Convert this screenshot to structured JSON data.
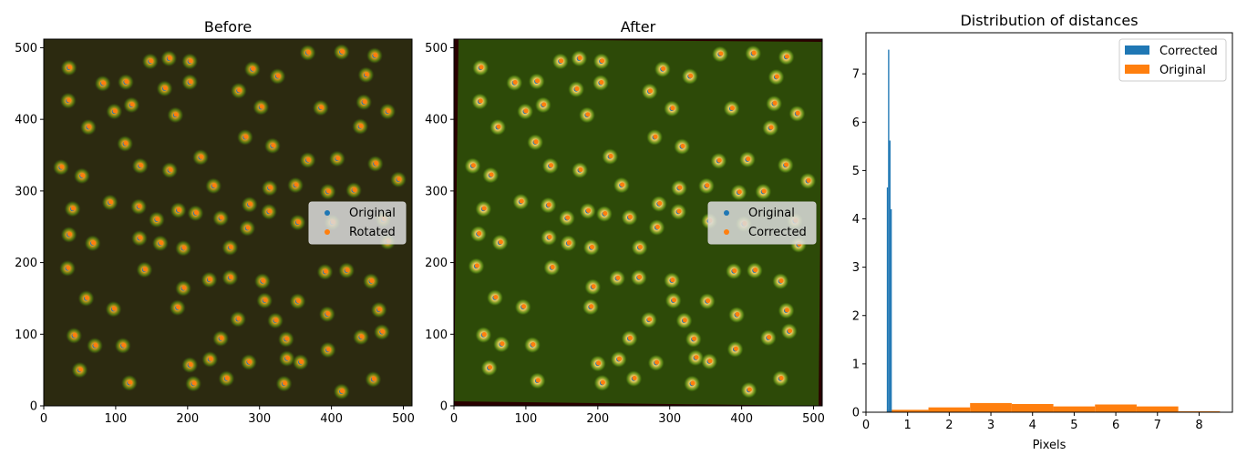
{
  "colors": {
    "blue": "#1f77b4",
    "orange": "#ff7f0e",
    "before_bg": "#2c2a10",
    "after_bg": "#2d4a08",
    "after_border": "#2a0000"
  },
  "chart_data": [
    {
      "type": "scatter",
      "title": "Before",
      "xlabel": "",
      "ylabel": "",
      "xlim": [
        0,
        512
      ],
      "ylim": [
        0,
        512
      ],
      "xticks": [
        "0",
        "100",
        "200",
        "300",
        "400",
        "500"
      ],
      "yticks": [
        "0",
        "100",
        "200",
        "300",
        "400",
        "500"
      ],
      "background": "fluorescence image of spots",
      "legend_position": "center-right",
      "series": [
        {
          "name": "Original",
          "color": "#1f77b4"
        },
        {
          "name": "Rotated",
          "color": "#ff7f0e"
        }
      ],
      "points": [
        [
          35,
          472
        ],
        [
          148,
          481
        ],
        [
          174,
          485
        ],
        [
          203,
          481
        ],
        [
          290,
          470
        ],
        [
          325,
          460
        ],
        [
          367,
          493
        ],
        [
          414,
          494
        ],
        [
          460,
          489
        ],
        [
          82,
          450
        ],
        [
          114,
          452
        ],
        [
          168,
          443
        ],
        [
          203,
          452
        ],
        [
          271,
          440
        ],
        [
          34,
          426
        ],
        [
          98,
          411
        ],
        [
          122,
          420
        ],
        [
          183,
          406
        ],
        [
          302,
          417
        ],
        [
          385,
          416
        ],
        [
          448,
          462
        ],
        [
          445,
          424
        ],
        [
          478,
          411
        ],
        [
          62,
          389
        ],
        [
          113,
          366
        ],
        [
          440,
          390
        ],
        [
          280,
          375
        ],
        [
          318,
          363
        ],
        [
          218,
          347
        ],
        [
          367,
          343
        ],
        [
          408,
          345
        ],
        [
          461,
          338
        ],
        [
          24,
          333
        ],
        [
          134,
          335
        ],
        [
          175,
          329
        ],
        [
          53,
          321
        ],
        [
          236,
          307
        ],
        [
          314,
          304
        ],
        [
          350,
          308
        ],
        [
          395,
          299
        ],
        [
          431,
          301
        ],
        [
          493,
          316
        ],
        [
          40,
          275
        ],
        [
          92,
          284
        ],
        [
          132,
          278
        ],
        [
          187,
          273
        ],
        [
          211,
          269
        ],
        [
          286,
          281
        ],
        [
          313,
          271
        ],
        [
          35,
          239
        ],
        [
          68,
          227
        ],
        [
          133,
          234
        ],
        [
          157,
          260
        ],
        [
          162,
          227
        ],
        [
          194,
          220
        ],
        [
          246,
          262
        ],
        [
          259,
          221
        ],
        [
          283,
          248
        ],
        [
          353,
          256
        ],
        [
          401,
          256
        ],
        [
          472,
          260
        ],
        [
          478,
          229
        ],
        [
          33,
          192
        ],
        [
          140,
          190
        ],
        [
          194,
          164
        ],
        [
          230,
          176
        ],
        [
          259,
          179
        ],
        [
          304,
          174
        ],
        [
          391,
          187
        ],
        [
          421,
          189
        ],
        [
          455,
          174
        ],
        [
          59,
          150
        ],
        [
          97,
          135
        ],
        [
          186,
          137
        ],
        [
          307,
          147
        ],
        [
          353,
          146
        ],
        [
          466,
          134
        ],
        [
          42,
          98
        ],
        [
          71,
          84
        ],
        [
          110,
          84
        ],
        [
          246,
          94
        ],
        [
          270,
          121
        ],
        [
          322,
          119
        ],
        [
          394,
          128
        ],
        [
          441,
          96
        ],
        [
          470,
          103
        ],
        [
          50,
          50
        ],
        [
          119,
          32
        ],
        [
          203,
          57
        ],
        [
          208,
          31
        ],
        [
          231,
          65
        ],
        [
          254,
          38
        ],
        [
          285,
          61
        ],
        [
          337,
          93
        ],
        [
          338,
          66
        ],
        [
          357,
          61
        ],
        [
          395,
          78
        ],
        [
          334,
          31
        ],
        [
          414,
          20
        ],
        [
          458,
          37
        ]
      ]
    },
    {
      "type": "scatter",
      "title": "After",
      "xlabel": "",
      "ylabel": "",
      "xlim": [
        0,
        512
      ],
      "ylim": [
        0,
        512
      ],
      "xticks": [
        "0",
        "100",
        "200",
        "300",
        "400",
        "500"
      ],
      "yticks": [
        "0",
        "100",
        "200",
        "300",
        "400",
        "500"
      ],
      "background": "fluorescence image of spots, slightly rotated",
      "legend_position": "center-right",
      "series": [
        {
          "name": "Original",
          "color": "#1f77b4"
        },
        {
          "name": "Corrected",
          "color": "#ff7f0e"
        }
      ],
      "points": [
        [
          37,
          472
        ],
        [
          148,
          481
        ],
        [
          174,
          485
        ],
        [
          205,
          481
        ],
        [
          290,
          470
        ],
        [
          328,
          460
        ],
        [
          370,
          491
        ],
        [
          416,
          492
        ],
        [
          462,
          487
        ],
        [
          84,
          451
        ],
        [
          115,
          453
        ],
        [
          170,
          442
        ],
        [
          204,
          451
        ],
        [
          272,
          439
        ],
        [
          36,
          425
        ],
        [
          99,
          411
        ],
        [
          124,
          420
        ],
        [
          185,
          406
        ],
        [
          303,
          415
        ],
        [
          386,
          415
        ],
        [
          448,
          459
        ],
        [
          445,
          422
        ],
        [
          477,
          408
        ],
        [
          61,
          389
        ],
        [
          113,
          368
        ],
        [
          440,
          388
        ],
        [
          279,
          375
        ],
        [
          317,
          362
        ],
        [
          217,
          348
        ],
        [
          368,
          342
        ],
        [
          408,
          344
        ],
        [
          461,
          336
        ],
        [
          26,
          335
        ],
        [
          134,
          335
        ],
        [
          175,
          329
        ],
        [
          51,
          322
        ],
        [
          233,
          308
        ],
        [
          313,
          304
        ],
        [
          351,
          307
        ],
        [
          396,
          298
        ],
        [
          430,
          299
        ],
        [
          492,
          314
        ],
        [
          41,
          275
        ],
        [
          93,
          285
        ],
        [
          131,
          280
        ],
        [
          186,
          272
        ],
        [
          209,
          268
        ],
        [
          285,
          282
        ],
        [
          312,
          271
        ],
        [
          34,
          240
        ],
        [
          64,
          228
        ],
        [
          132,
          235
        ],
        [
          157,
          262
        ],
        [
          159,
          227
        ],
        [
          191,
          221
        ],
        [
          244,
          263
        ],
        [
          258,
          221
        ],
        [
          282,
          249
        ],
        [
          355,
          258
        ],
        [
          403,
          254
        ],
        [
          474,
          258
        ],
        [
          479,
          225
        ],
        [
          31,
          195
        ],
        [
          136,
          193
        ],
        [
          193,
          166
        ],
        [
          227,
          178
        ],
        [
          257,
          179
        ],
        [
          303,
          175
        ],
        [
          389,
          188
        ],
        [
          418,
          189
        ],
        [
          454,
          174
        ],
        [
          57,
          151
        ],
        [
          96,
          138
        ],
        [
          190,
          138
        ],
        [
          305,
          147
        ],
        [
          352,
          146
        ],
        [
          462,
          133
        ],
        [
          41,
          99
        ],
        [
          66,
          86
        ],
        [
          109,
          85
        ],
        [
          244,
          94
        ],
        [
          271,
          120
        ],
        [
          320,
          119
        ],
        [
          393,
          127
        ],
        [
          437,
          95
        ],
        [
          466,
          104
        ],
        [
          49,
          53
        ],
        [
          116,
          35
        ],
        [
          200,
          59
        ],
        [
          206,
          32
        ],
        [
          229,
          65
        ],
        [
          250,
          38
        ],
        [
          281,
          60
        ],
        [
          333,
          93
        ],
        [
          336,
          67
        ],
        [
          355,
          62
        ],
        [
          391,
          79
        ],
        [
          331,
          31
        ],
        [
          410,
          22
        ],
        [
          454,
          38
        ]
      ]
    },
    {
      "type": "histogram",
      "title": "Distribution of distances",
      "xlabel": "Pixels",
      "ylabel": "",
      "xlim": [
        0,
        8.8
      ],
      "ylim": [
        0,
        7.85
      ],
      "xticks": [
        "0",
        "1",
        "2",
        "3",
        "4",
        "5",
        "6",
        "7",
        "8"
      ],
      "yticks": [
        "0",
        "1",
        "2",
        "3",
        "4",
        "5",
        "6",
        "7"
      ],
      "legend_position": "top-right",
      "series": [
        {
          "name": "Corrected",
          "color": "#1f77b4",
          "bins": [
            [
              0.5,
              0.53,
              4.65
            ],
            [
              0.53,
              0.56,
              7.5
            ],
            [
              0.56,
              0.59,
              5.62
            ],
            [
              0.59,
              0.62,
              4.2
            ]
          ]
        },
        {
          "name": "Original",
          "color": "#ff7f0e",
          "bins": [
            [
              0.5,
              1.5,
              0.05
            ],
            [
              1.5,
              2.5,
              0.1
            ],
            [
              2.5,
              3.5,
              0.19
            ],
            [
              3.5,
              4.5,
              0.17
            ],
            [
              4.5,
              5.5,
              0.12
            ],
            [
              5.5,
              6.5,
              0.16
            ],
            [
              6.5,
              7.5,
              0.12
            ],
            [
              7.5,
              8.5,
              0.02
            ]
          ]
        }
      ]
    }
  ]
}
